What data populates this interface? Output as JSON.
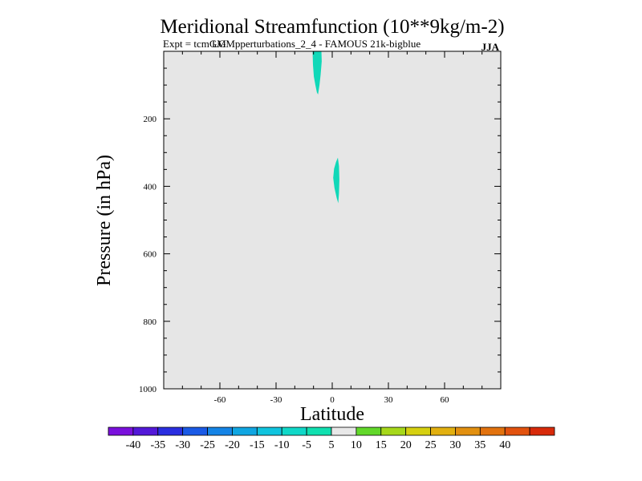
{
  "chart_data": {
    "type": "contour",
    "title": "Meridional Streamfunction (10**9kg/m-2)",
    "subtitle_left": "Expt = tcmGM",
    "subtitle_overlap": "LGMpperturbations_2_4 - FAMOUS 21k-bigblue",
    "season": "JJA",
    "xlabel": "Latitude",
    "ylabel": "Pressure (in hPa)",
    "xlim": [
      -90,
      90
    ],
    "ylim": [
      1000,
      0
    ],
    "x_ticks": [
      -60,
      -30,
      0,
      30,
      60
    ],
    "x_tick_labels": [
      "-60",
      "-30",
      "0",
      "30",
      "60"
    ],
    "y_ticks": [
      200,
      400,
      600,
      800,
      1000
    ],
    "y_tick_labels": [
      "200",
      "400",
      "600",
      "800",
      "1000"
    ],
    "background_level_color": "#e6e6e6",
    "regions": [
      {
        "name": "upper-cell",
        "level": "-10 to -5",
        "color": "#10d8b8",
        "outline": [
          [
            -10.5,
            0
          ],
          [
            -5.8,
            0
          ],
          [
            -5.6,
            30
          ],
          [
            -6.2,
            70
          ],
          [
            -6.8,
            100
          ],
          [
            -7.6,
            128
          ],
          [
            -8.2,
            122
          ],
          [
            -9.0,
            100
          ],
          [
            -9.8,
            75
          ],
          [
            -10.3,
            40
          ]
        ]
      },
      {
        "name": "mid-cell",
        "level": "-10 to -5",
        "color": "#10d8b8",
        "outline": [
          [
            3.0,
            315
          ],
          [
            3.6,
            340
          ],
          [
            3.8,
            380
          ],
          [
            3.6,
            420
          ],
          [
            3.2,
            450
          ],
          [
            2.4,
            435
          ],
          [
            1.2,
            405
          ],
          [
            0.5,
            375
          ],
          [
            1.0,
            348
          ],
          [
            2.0,
            328
          ]
        ]
      }
    ],
    "colorbar": {
      "labels": [
        "-40",
        "-35",
        "-30",
        "-25",
        "-20",
        "-15",
        "-10",
        "-5",
        "5",
        "10",
        "15",
        "20",
        "25",
        "30",
        "35",
        "40"
      ],
      "colors": [
        "#7a10dc",
        "#5318d8",
        "#2a2ee0",
        "#1a5ae6",
        "#1584e6",
        "#10a6e2",
        "#10c4de",
        "#10d8c8",
        "#10e0b0",
        "#e8e8e8",
        "#62d82a",
        "#a6d81a",
        "#d6d010",
        "#e2b010",
        "#e29010",
        "#e2720e",
        "#e2520e",
        "#d82a0a"
      ]
    }
  }
}
